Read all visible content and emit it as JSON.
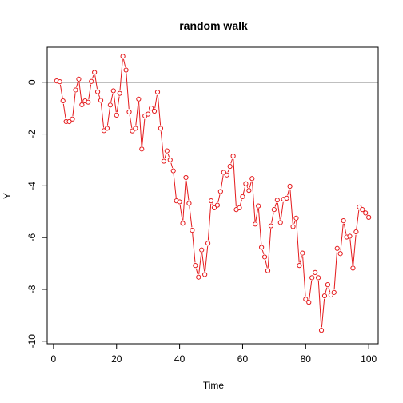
{
  "chart_data": {
    "type": "line",
    "title": "random walk",
    "xlabel": "Time",
    "ylabel": "Y",
    "xlim": [
      -2,
      103
    ],
    "ylim": [
      -10.1,
      1.35
    ],
    "x_ticks": [
      0,
      20,
      40,
      60,
      80,
      100
    ],
    "y_ticks": [
      0,
      -2,
      -4,
      -6,
      -8,
      -10
    ],
    "reference_line_y": 0,
    "grid": false,
    "legend": "none",
    "series_color": "#e41a1c",
    "series": [
      {
        "marker": "open-circle",
        "x": [
          1,
          2,
          3,
          4,
          5,
          6,
          7,
          8,
          9,
          10,
          11,
          12,
          13,
          14,
          15,
          16,
          17,
          18,
          19,
          20,
          21,
          22,
          23,
          24,
          25,
          26,
          27,
          28,
          29,
          30,
          31,
          32,
          33,
          34,
          35,
          36,
          37,
          38,
          39,
          40,
          41,
          42,
          43,
          44,
          45,
          46,
          47,
          48,
          49,
          50,
          51,
          52,
          53,
          54,
          55,
          56,
          57,
          58,
          59,
          60,
          61,
          62,
          63,
          64,
          65,
          66,
          67,
          68,
          69,
          70,
          71,
          72,
          73,
          74,
          75,
          76,
          77,
          78,
          79,
          80,
          81,
          82,
          83,
          84,
          85,
          86,
          87,
          88,
          89,
          90,
          91,
          92,
          93,
          94,
          95,
          96,
          97,
          98,
          99,
          100
        ],
        "y": [
          0.05,
          0.02,
          -0.72,
          -1.52,
          -1.52,
          -1.42,
          -0.3,
          0.12,
          -0.87,
          -0.72,
          -0.77,
          0.03,
          0.38,
          -0.37,
          -0.7,
          -1.87,
          -1.78,
          -0.88,
          -0.33,
          -1.27,
          -0.43,
          1.0,
          0.47,
          -1.15,
          -1.88,
          -1.78,
          -0.65,
          -2.58,
          -1.3,
          -1.23,
          -1.0,
          -1.12,
          -0.38,
          -1.78,
          -3.05,
          -2.65,
          -3.0,
          -3.42,
          -4.58,
          -4.62,
          -5.45,
          -3.68,
          -4.68,
          -5.72,
          -7.08,
          -7.53,
          -6.48,
          -7.43,
          -6.22,
          -4.58,
          -4.85,
          -4.75,
          -4.22,
          -3.48,
          -3.58,
          -3.25,
          -2.85,
          -4.92,
          -4.85,
          -4.42,
          -3.92,
          -4.18,
          -3.72,
          -5.48,
          -4.78,
          -6.38,
          -6.75,
          -7.28,
          -5.55,
          -4.92,
          -4.55,
          -5.42,
          -4.52,
          -4.48,
          -4.02,
          -5.58,
          -5.25,
          -7.08,
          -6.6,
          -8.38,
          -8.5,
          -7.55,
          -7.35,
          -7.55,
          -9.58,
          -8.25,
          -7.82,
          -8.22,
          -8.12,
          -6.42,
          -6.62,
          -5.35,
          -5.98,
          -5.95,
          -7.18,
          -5.78,
          -4.82,
          -4.92,
          -5.05,
          -5.22
        ]
      }
    ]
  }
}
